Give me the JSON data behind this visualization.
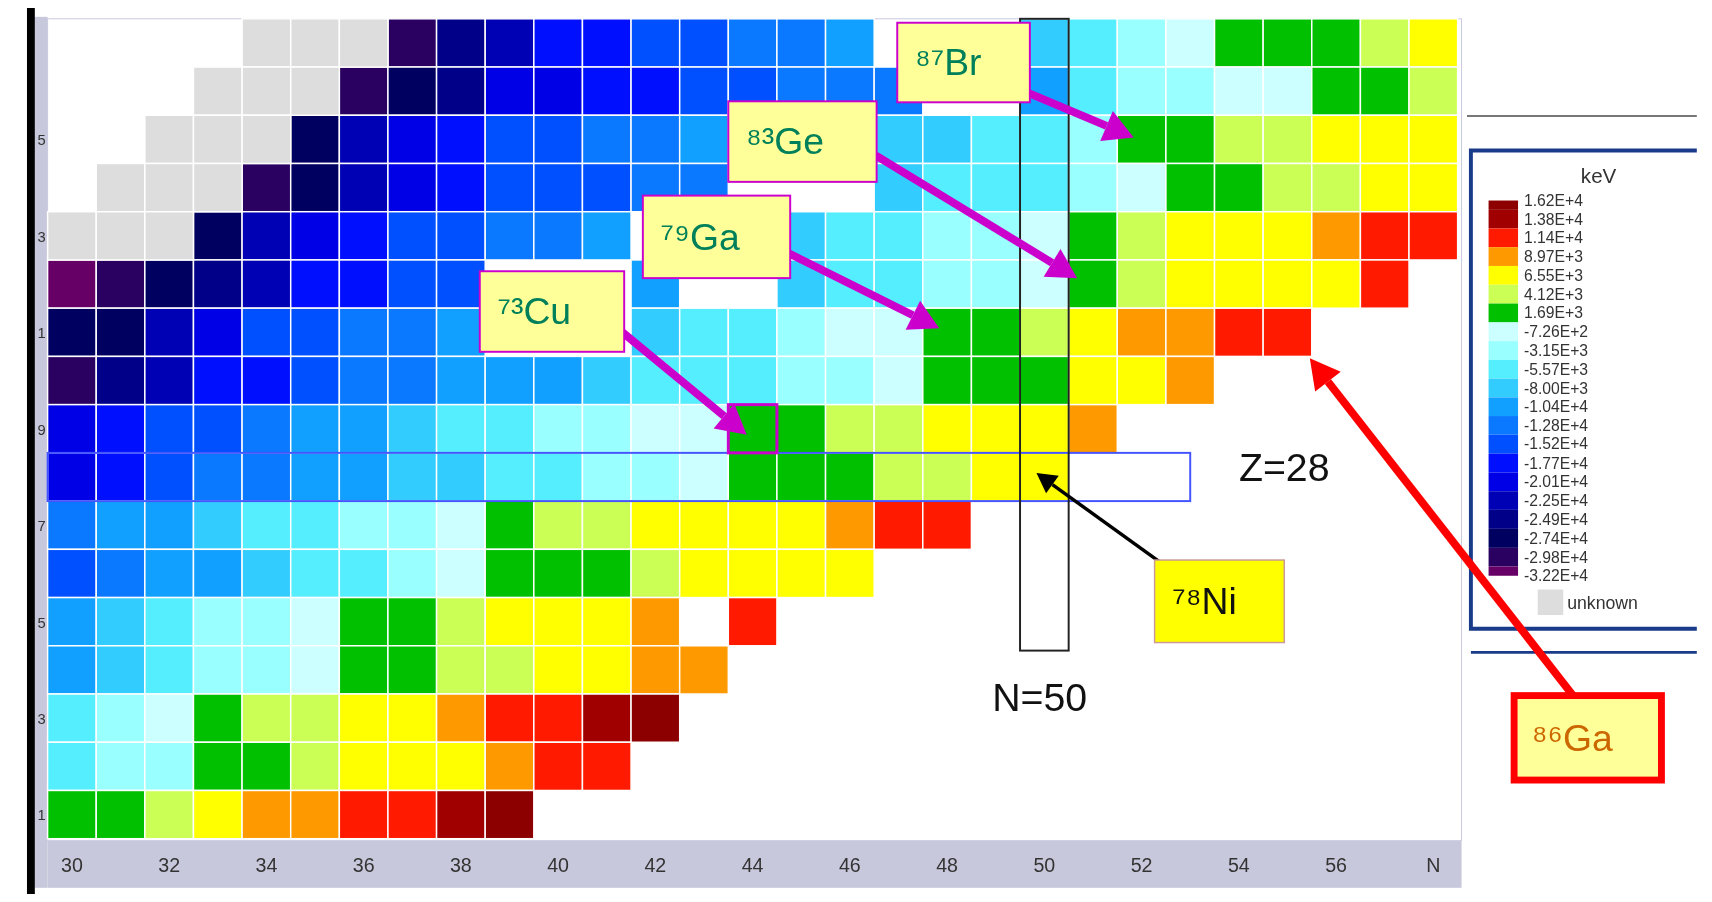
{
  "chart_data": {
    "type": "heatmap",
    "clabel": "keV",
    "categories": [
      "30",
      null,
      "32",
      null,
      "34",
      null,
      "36",
      null,
      "38",
      null,
      "40",
      null,
      "42",
      null,
      "44",
      null,
      "46",
      null,
      "48",
      null,
      "50",
      null,
      "52",
      null,
      "54",
      null,
      "56",
      null,
      "N"
    ],
    "y_categories": [
      null,
      null,
      "5",
      null,
      "3",
      null,
      "1",
      null,
      "9",
      null,
      "7",
      null,
      "5",
      null,
      "3",
      null,
      "1"
    ],
    "clim": [
      -32200,
      16200
    ],
    "cticks": [
      {
        "value": 16200,
        "label": "1.62E+4"
      },
      {
        "value": 13800,
        "label": "1.38E+4"
      },
      {
        "value": 11400,
        "label": "1.14E+4"
      },
      {
        "value": 8970,
        "label": "8.97E+3"
      },
      {
        "value": 6550,
        "label": "6.55E+3"
      },
      {
        "value": 4120,
        "label": "4.12E+3"
      },
      {
        "value": 1690,
        "label": "1.69E+3"
      },
      {
        "value": -726,
        "label": "-7.26E+2"
      },
      {
        "value": -3150,
        "label": "-3.15E+3"
      },
      {
        "value": -5570,
        "label": "-5.57E+3"
      },
      {
        "value": -8000,
        "label": "-8.00E+3"
      },
      {
        "value": -10400,
        "label": "-1.04E+4"
      },
      {
        "value": -12800,
        "label": "-1.28E+4"
      },
      {
        "value": -15200,
        "label": "-1.52E+4"
      },
      {
        "value": -17700,
        "label": "-1.77E+4"
      },
      {
        "value": -20100,
        "label": "-2.01E+4"
      },
      {
        "value": -22500,
        "label": "-2.25E+4"
      },
      {
        "value": -24900,
        "label": "-2.49E+4"
      },
      {
        "value": -27400,
        "label": "-2.74E+4"
      },
      {
        "value": -29800,
        "label": "-2.98E+4"
      },
      {
        "value": -32200,
        "label": "-3.22E+4"
      }
    ],
    "colors": [
      "#8c0000",
      "#a00000",
      "#ff1a00",
      "#ff9900",
      "#ffff00",
      "#ccff55",
      "#00c000",
      "#ccffff",
      "#99ffff",
      "#55eeff",
      "#33ccff",
      "#11a0ff",
      "#0a78ff",
      "#0050ff",
      "#0010ff",
      "#0000e6",
      "#0000b4",
      "#000088",
      "#000060",
      "#2a0060",
      "#660066"
    ],
    "cells": [
      [
        null,
        null,
        null,
        null,
        null,
        null,
        null,
        -29800,
        -24900,
        -22500,
        -17700,
        -17700,
        -15200,
        -15200,
        -12800,
        -12800,
        -10400,
        null,
        null,
        null,
        -8000,
        -5570,
        -3150,
        -726,
        1690,
        1690,
        1690,
        4120,
        6550
      ],
      [
        null,
        null,
        null,
        null,
        null,
        null,
        -29800,
        -27400,
        -24900,
        -20100,
        -20100,
        -17700,
        -17700,
        -15200,
        -15200,
        -12800,
        -12800,
        -12800,
        null,
        null,
        -10400,
        -5570,
        -3150,
        -3150,
        -726,
        -726,
        1690,
        1690,
        4120
      ],
      [
        null,
        null,
        null,
        null,
        null,
        -27400,
        -22500,
        -20100,
        -17700,
        -15200,
        -15200,
        -12800,
        -12800,
        -10400,
        null,
        null,
        null,
        -8000,
        -8000,
        -5570,
        -5570,
        -3150,
        1690,
        1690,
        4120,
        4120,
        6550,
        6550,
        6550
      ],
      [
        null,
        null,
        null,
        null,
        -29800,
        -27400,
        -22500,
        -20100,
        -17700,
        -15200,
        -15200,
        -15200,
        -12800,
        -12800,
        null,
        null,
        null,
        -8000,
        -5570,
        -5570,
        -5570,
        -3150,
        -726,
        1690,
        1690,
        4120,
        4120,
        6550,
        6550
      ],
      [
        null,
        null,
        null,
        -27400,
        -22500,
        -20100,
        -17700,
        -15200,
        -15200,
        -12800,
        -12800,
        -10400,
        null,
        null,
        null,
        -8000,
        -5570,
        -5570,
        -3150,
        -3150,
        -726,
        1690,
        4120,
        6550,
        6550,
        6550,
        8970,
        11400,
        11400
      ],
      [
        -32200,
        -29800,
        -27400,
        -24900,
        -22500,
        -17700,
        -17700,
        -15200,
        -15200,
        null,
        null,
        null,
        -10400,
        null,
        null,
        -8000,
        -5570,
        -5570,
        -3150,
        -3150,
        -726,
        1690,
        4120,
        6550,
        6550,
        6550,
        6550,
        11400,
        null
      ],
      [
        -27400,
        -27400,
        -22500,
        -20100,
        -15200,
        -15200,
        -12800,
        -12800,
        -10400,
        null,
        null,
        null,
        -8000,
        -5570,
        -5570,
        -3150,
        -726,
        -726,
        1690,
        1690,
        4120,
        6550,
        8970,
        8970,
        11400,
        11400,
        null,
        null,
        null
      ],
      [
        -29800,
        -24900,
        -22500,
        -17700,
        -17700,
        -15200,
        -12800,
        -12800,
        -10400,
        -10400,
        -10400,
        -8000,
        -5570,
        -5570,
        -5570,
        -3150,
        -3150,
        -726,
        1690,
        1690,
        1690,
        6550,
        6550,
        8970,
        null,
        null,
        null,
        null,
        null
      ],
      [
        -20100,
        -17700,
        -15200,
        -15200,
        -12800,
        -10400,
        -10400,
        -8000,
        -5570,
        -5570,
        -3150,
        -3150,
        -726,
        -726,
        1690,
        1690,
        4120,
        4120,
        6550,
        6550,
        6550,
        8970,
        null,
        null,
        null,
        null,
        null,
        null,
        null
      ],
      [
        -20100,
        -17700,
        -15200,
        -12800,
        -12800,
        -10400,
        -10400,
        -8000,
        -8000,
        -5570,
        -5570,
        -3150,
        -3150,
        -726,
        1690,
        1690,
        1690,
        4120,
        4120,
        6550,
        6550,
        null,
        null,
        null,
        null,
        null,
        null,
        null,
        null
      ],
      [
        -12800,
        -10400,
        -10400,
        -8000,
        -5570,
        -5570,
        -3150,
        -3150,
        -726,
        1690,
        4120,
        4120,
        6550,
        6550,
        6550,
        6550,
        8970,
        11400,
        11400,
        null,
        null,
        null,
        null,
        null,
        null,
        null,
        null,
        null,
        null
      ],
      [
        -15200,
        -12800,
        -10400,
        -10400,
        -8000,
        -5570,
        -5570,
        -3150,
        -726,
        1690,
        1690,
        1690,
        4120,
        6550,
        6550,
        6550,
        6550,
        null,
        null,
        null,
        null,
        null,
        null,
        null,
        null,
        null,
        null,
        null,
        null
      ],
      [
        -10400,
        -8000,
        -5570,
        -3150,
        -3150,
        -726,
        1690,
        1690,
        4120,
        6550,
        6550,
        6550,
        8970,
        null,
        11400,
        null,
        null,
        null,
        null,
        null,
        null,
        null,
        null,
        null,
        null,
        null,
        null,
        null,
        null
      ],
      [
        -10400,
        -8000,
        -5570,
        -3150,
        -3150,
        -726,
        1690,
        1690,
        4120,
        4120,
        6550,
        6550,
        8970,
        8970,
        null,
        null,
        null,
        null,
        null,
        null,
        null,
        null,
        null,
        null,
        null,
        null,
        null,
        null,
        null
      ],
      [
        -5570,
        -3150,
        -726,
        1690,
        4120,
        4120,
        6550,
        6550,
        8970,
        11400,
        11400,
        13800,
        16200,
        null,
        null,
        null,
        null,
        null,
        null,
        null,
        null,
        null,
        null,
        null,
        null,
        null,
        null,
        null,
        null
      ],
      [
        -5570,
        -3150,
        -3150,
        1690,
        1690,
        4120,
        6550,
        6550,
        6550,
        8970,
        11400,
        11400,
        null,
        null,
        null,
        null,
        null,
        null,
        null,
        null,
        null,
        null,
        null,
        null,
        null,
        null,
        null,
        null,
        null
      ],
      [
        1690,
        1690,
        4120,
        6550,
        8970,
        8970,
        11400,
        11400,
        13800,
        16200,
        null,
        null,
        null,
        null,
        null,
        null,
        null,
        null,
        null,
        null,
        null,
        null,
        null,
        null,
        null,
        null,
        null,
        null,
        null
      ]
    ],
    "annotations": [
      "⁸⁷Br",
      "⁸³Ge",
      "⁷⁹Ga",
      "⁷³Cu",
      "⁷⁸Ni",
      "⁸⁶Ga",
      "Z=28",
      "N=50",
      "unknown"
    ]
  }
}
